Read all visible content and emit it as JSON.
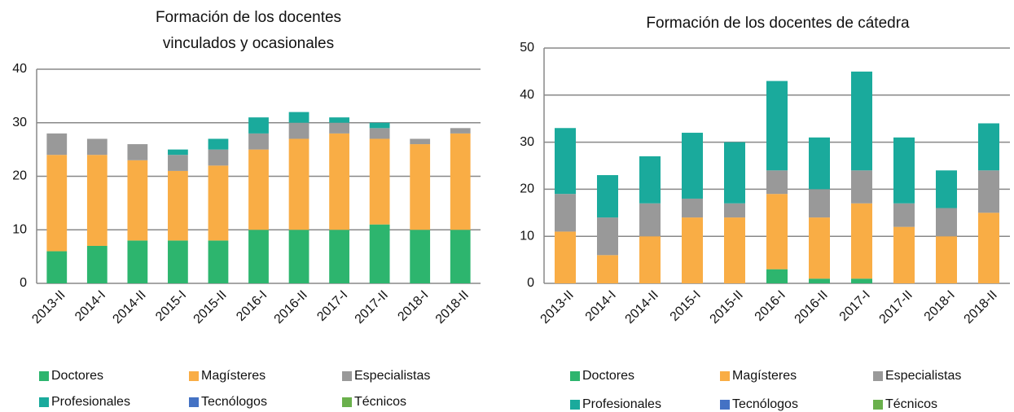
{
  "chart_data": [
    {
      "type": "bar",
      "stacked": true,
      "title": [
        "Formación de los docentes",
        "vinculados y ocasionales"
      ],
      "categories": [
        "2013-II",
        "2014-I",
        "2014-II",
        "2015-I",
        "2015-II",
        "2016-I",
        "2016-II",
        "2017-I",
        "2017-II",
        "2018-I",
        "2018-II"
      ],
      "series": [
        {
          "name": "Doctores",
          "color": "#2db56e",
          "values": [
            6,
            7,
            8,
            8,
            8,
            10,
            10,
            10,
            11,
            10,
            10
          ]
        },
        {
          "name": "Magísteres",
          "color": "#f9ad45",
          "values": [
            18,
            17,
            15,
            13,
            14,
            15,
            17,
            18,
            16,
            16,
            18
          ]
        },
        {
          "name": "Especialistas",
          "color": "#999999",
          "values": [
            4,
            3,
            3,
            3,
            3,
            3,
            3,
            2,
            2,
            1,
            1
          ]
        },
        {
          "name": "Profesionales",
          "color": "#1aaa9c",
          "values": [
            0,
            0,
            0,
            1,
            2,
            3,
            2,
            1,
            1,
            0,
            0
          ]
        },
        {
          "name": "Tecnólogos",
          "color": "#4472c4",
          "values": [
            0,
            0,
            0,
            0,
            0,
            0,
            0,
            0,
            0,
            0,
            0
          ]
        },
        {
          "name": "Técnicos",
          "color": "#6ab04c",
          "values": [
            0,
            0,
            0,
            0,
            0,
            0,
            0,
            0,
            0,
            0,
            0
          ]
        }
      ],
      "ylim": [
        0,
        40
      ],
      "yticks": [
        0,
        10,
        20,
        30,
        40
      ],
      "grid": true,
      "legend": "bottom"
    },
    {
      "type": "bar",
      "stacked": true,
      "title": [
        "Formación de los docentes de cátedra"
      ],
      "categories": [
        "2013-II",
        "2014-I",
        "2014-II",
        "2015-I",
        "2015-II",
        "2016-I",
        "2016-II",
        "2017-I",
        "2017-II",
        "2018-I",
        "2018-II"
      ],
      "series": [
        {
          "name": "Doctores",
          "color": "#2db56e",
          "values": [
            0,
            0,
            0,
            0,
            0,
            3,
            1,
            1,
            0,
            0,
            0
          ]
        },
        {
          "name": "Magísteres",
          "color": "#f9ad45",
          "values": [
            11,
            6,
            10,
            14,
            14,
            16,
            13,
            16,
            12,
            10,
            15
          ]
        },
        {
          "name": "Especialistas",
          "color": "#999999",
          "values": [
            8,
            8,
            7,
            4,
            3,
            5,
            6,
            7,
            5,
            6,
            9
          ]
        },
        {
          "name": "Profesionales",
          "color": "#1aaa9c",
          "values": [
            14,
            9,
            10,
            14,
            13,
            19,
            11,
            21,
            14,
            8,
            10
          ]
        },
        {
          "name": "Tecnólogos",
          "color": "#4472c4",
          "values": [
            0,
            0,
            0,
            0,
            0,
            0,
            0,
            0,
            0,
            0,
            0
          ]
        },
        {
          "name": "Técnicos",
          "color": "#6ab04c",
          "values": [
            0,
            0,
            0,
            0,
            0,
            0,
            0,
            0,
            0,
            0,
            0
          ]
        }
      ],
      "ylim": [
        0,
        50
      ],
      "yticks": [
        0,
        10,
        20,
        30,
        40,
        50
      ],
      "grid": true,
      "legend": "bottom"
    }
  ]
}
